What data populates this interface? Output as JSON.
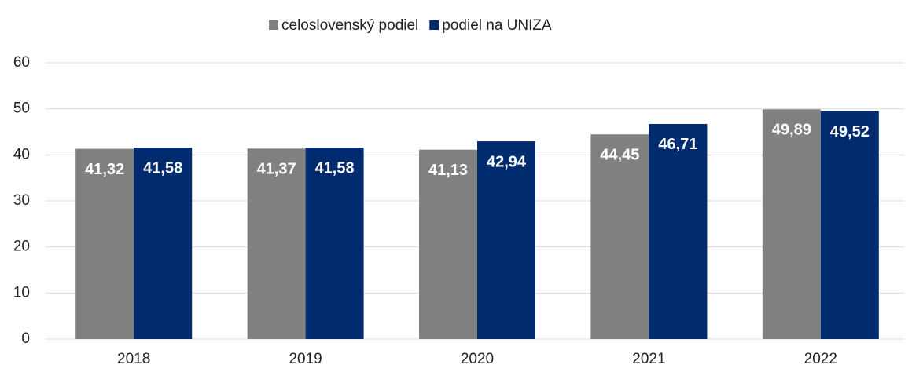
{
  "chart_data": {
    "type": "bar",
    "categories": [
      "2018",
      "2019",
      "2020",
      "2021",
      "2022"
    ],
    "series": [
      {
        "name": "celoslovenský podiel",
        "color": "#808080",
        "values": [
          41.32,
          41.37,
          41.13,
          44.45,
          49.89
        ],
        "value_labels": [
          "41,32",
          "41,37",
          "41,13",
          "44,45",
          "49,89"
        ]
      },
      {
        "name": "podiel na UNIZA",
        "color": "#002b6e",
        "values": [
          41.58,
          41.58,
          42.94,
          46.71,
          49.52
        ],
        "value_labels": [
          "41,58",
          "41,58",
          "42,94",
          "46,71",
          "49,52"
        ]
      }
    ],
    "ylim": [
      0,
      60
    ],
    "yticks": [
      0,
      10,
      20,
      30,
      40,
      50,
      60
    ],
    "grid": true,
    "legend": "top"
  }
}
